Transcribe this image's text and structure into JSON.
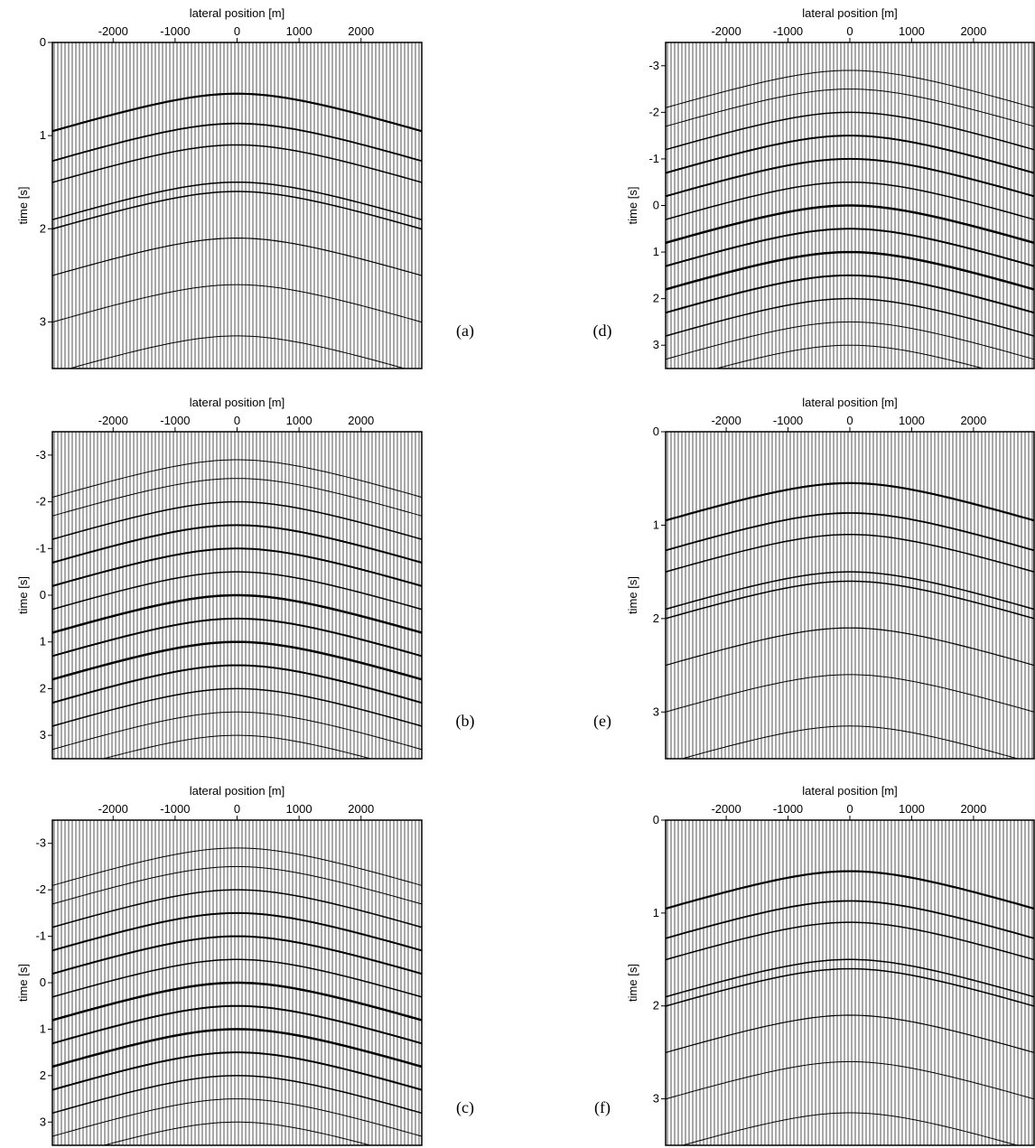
{
  "chart_data": [
    {
      "type": "seismic",
      "label": "(a)",
      "xlabel": "lateral position [m]",
      "ylabel": "time [s]",
      "xlim": [
        -2980,
        2980
      ],
      "xticks": [
        -2000,
        -1000,
        0,
        1000,
        2000
      ],
      "ylim": [
        0,
        3.5
      ],
      "yticks": [
        0,
        1,
        2,
        3
      ]
    },
    {
      "type": "seismic",
      "label": "(b)",
      "xlabel": "lateral position [m]",
      "ylabel": "time [s]",
      "xlim": [
        -2980,
        2980
      ],
      "xticks": [
        -2000,
        -1000,
        0,
        1000,
        2000
      ],
      "ylim": [
        -3.5,
        3.5
      ],
      "yticks": [
        -3,
        -2,
        -1,
        0,
        1,
        2,
        3
      ]
    },
    {
      "type": "seismic",
      "label": "(c)",
      "xlabel": "lateral position [m]",
      "ylabel": "time [s]",
      "xlim": [
        -2980,
        2980
      ],
      "xticks": [
        -2000,
        -1000,
        0,
        1000,
        2000
      ],
      "ylim": [
        -3.5,
        3.5
      ],
      "yticks": [
        -3,
        -2,
        -1,
        0,
        1,
        2,
        3
      ]
    },
    {
      "type": "seismic",
      "label": "(d)",
      "xlabel": "lateral position [m]",
      "ylabel": "time [s]",
      "xlim": [
        -2980,
        2980
      ],
      "xticks": [
        -2000,
        -1000,
        0,
        1000,
        2000
      ],
      "ylim": [
        -3.5,
        3.5
      ],
      "yticks": [
        -3,
        -2,
        -1,
        0,
        1,
        2,
        3
      ]
    },
    {
      "type": "seismic",
      "label": "(e)",
      "xlabel": "lateral position [m]",
      "ylabel": "time [s]",
      "xlim": [
        -2980,
        2980
      ],
      "xticks": [
        -2000,
        -1000,
        0,
        1000,
        2000
      ],
      "ylim": [
        0,
        3.5
      ],
      "yticks": [
        0,
        1,
        2,
        3
      ]
    },
    {
      "type": "seismic",
      "label": "(f)",
      "xlabel": "lateral position [m]",
      "ylabel": "time [s]",
      "xlim": [
        -2980,
        2980
      ],
      "xticks": [
        -2000,
        -1000,
        0,
        1000,
        2000
      ],
      "ylim": [
        0,
        3.5
      ],
      "yticks": [
        0,
        1,
        2,
        3
      ]
    }
  ]
}
